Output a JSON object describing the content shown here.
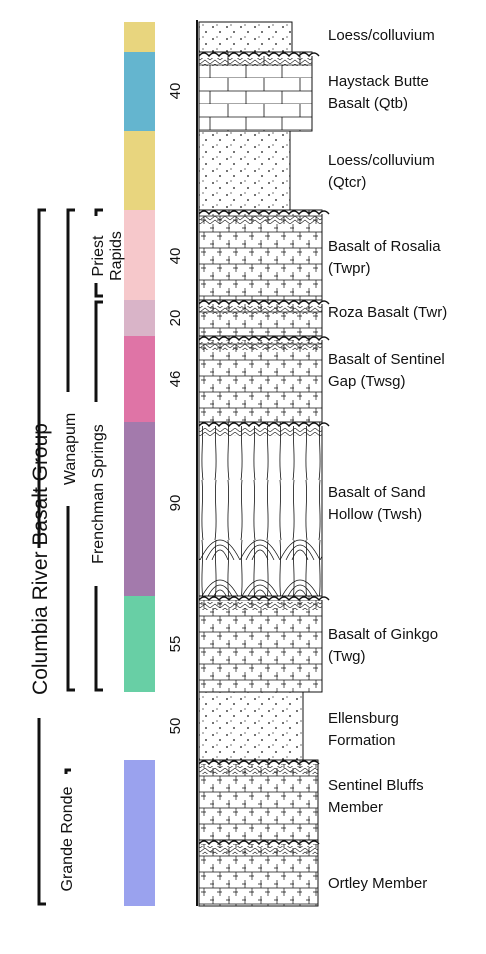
{
  "colors": {
    "loess": "#e8d57e",
    "haystack": "#64b5cf",
    "rosalia": "#f6c8cb",
    "roza": "#d9b4c8",
    "sentinel_gap": "#df74a6",
    "sand_hollow": "#a37aac",
    "ginkgo": "#68cfa5",
    "grande_ronde": "#9aa2ee"
  },
  "units": [
    {
      "key": "loess_top",
      "line1": "Loess/colluvium",
      "line2": "",
      "thickness": "",
      "color": "#e8d57e",
      "pattern": "dots"
    },
    {
      "key": "haystack",
      "line1": "Haystack Butte",
      "line2": "Basalt (Qtb)",
      "thickness": "40",
      "color": "#64b5cf",
      "pattern": "blocks"
    },
    {
      "key": "qtcr",
      "line1": "Loess/colluvium",
      "line2": "(Qtcr)",
      "thickness": "",
      "color": "#e8d57e",
      "pattern": "dots"
    },
    {
      "key": "rosalia",
      "line1": "Basalt of Rosalia",
      "line2": "(Twpr)",
      "thickness": "40",
      "color": "#f6c8cb",
      "pattern": "basalt"
    },
    {
      "key": "roza",
      "line1": "Roza Basalt (Twr)",
      "line2": "",
      "thickness": "20",
      "color": "#d9b4c8",
      "pattern": "basalt"
    },
    {
      "key": "sentinel_gap",
      "line1": "Basalt of Sentinel",
      "line2": "Gap (Twsg)",
      "thickness": "46",
      "color": "#df74a6",
      "pattern": "basalt"
    },
    {
      "key": "sand_hollow",
      "line1": "Basalt of Sand",
      "line2": "Hollow (Twsh)",
      "thickness": "90",
      "color": "#a37aac",
      "pattern": "columns"
    },
    {
      "key": "ginkgo",
      "line1": "Basalt of Ginkgo",
      "line2": "(Twg)",
      "thickness": "55",
      "color": "#68cfa5",
      "pattern": "basalt"
    },
    {
      "key": "ellensburg",
      "line1": "Ellensburg",
      "line2": "Formation",
      "thickness": "50",
      "color": "",
      "pattern": "dots"
    },
    {
      "key": "sentinel_bluffs",
      "line1": "Sentinel Bluffs",
      "line2": "Member",
      "thickness": "",
      "color": "#9aa2ee",
      "pattern": "basalt"
    },
    {
      "key": "ortley",
      "line1": "Ortley Member",
      "line2": "",
      "thickness": "",
      "color": "#9aa2ee",
      "pattern": "basalt"
    }
  ],
  "groups": {
    "columbia": "Columbia River Basalt Group",
    "grande_ronde": "Grande Ronde",
    "wanapum": "Wanapum",
    "frenchman": "Frenchman Springs",
    "priest_line1": "Priest",
    "priest_line2": "Rapids"
  }
}
